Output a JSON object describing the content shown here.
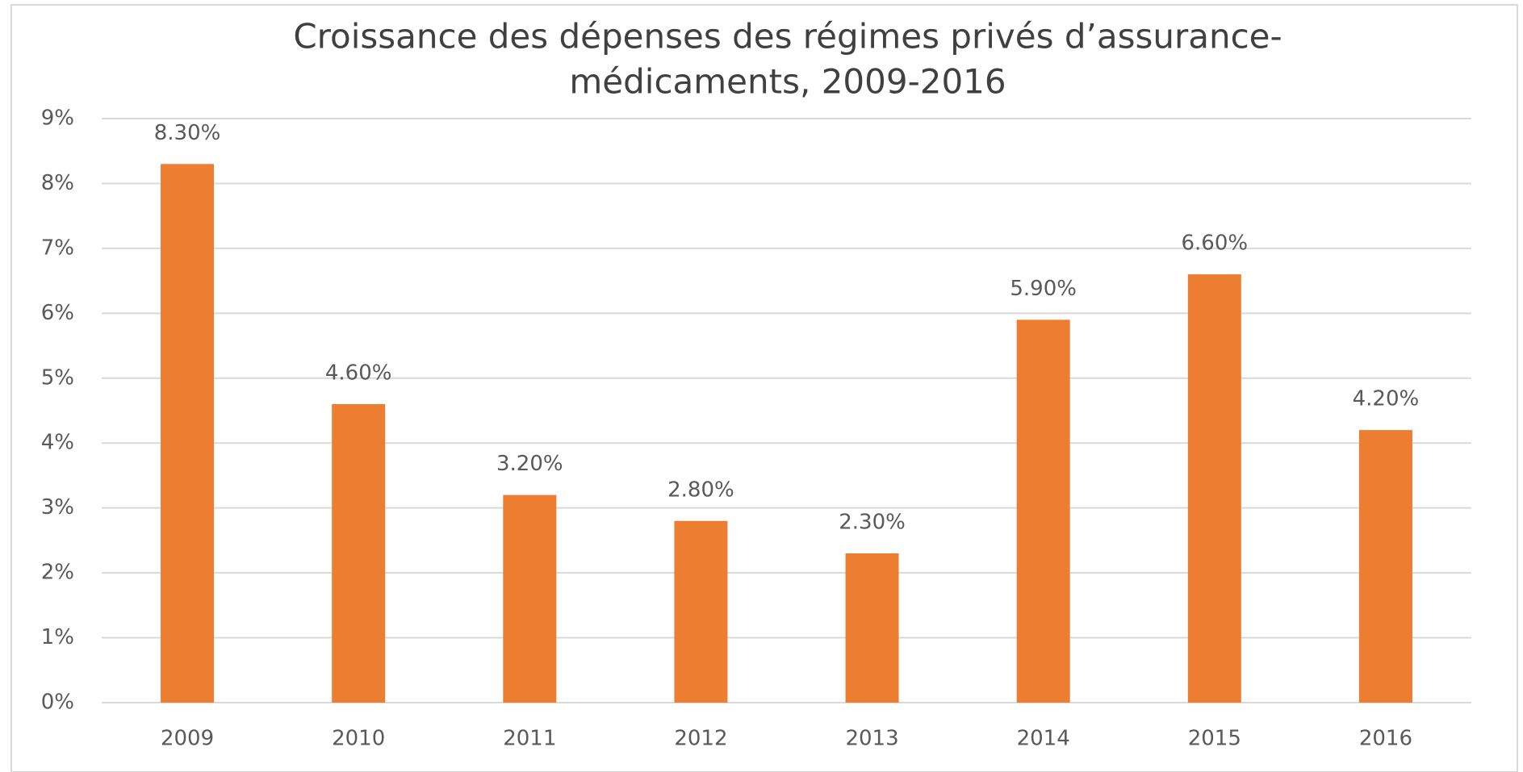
{
  "chart_data": {
    "type": "bar",
    "title": [
      "Croissance des dépenses des régimes privés d’assurance-",
      "médicaments, 2009-2016"
    ],
    "categories": [
      "2009",
      "2010",
      "2011",
      "2012",
      "2013",
      "2014",
      "2015",
      "2016"
    ],
    "values": [
      8.3,
      4.6,
      3.2,
      2.8,
      2.3,
      5.9,
      6.6,
      4.2
    ],
    "value_labels": [
      "8.30%",
      "4.60%",
      "3.20%",
      "2.80%",
      "2.30%",
      "5.90%",
      "6.60%",
      "4.20%"
    ],
    "color": "#ed7d31",
    "ylim": [
      0,
      9
    ],
    "yticks": [
      {
        "value": 0,
        "label": "0%"
      },
      {
        "value": 1,
        "label": "1%"
      },
      {
        "value": 2,
        "label": "2%"
      },
      {
        "value": 3,
        "label": "3%"
      },
      {
        "value": 4,
        "label": "4%"
      },
      {
        "value": 5,
        "label": "5%"
      },
      {
        "value": 6,
        "label": "6%"
      },
      {
        "value": 7,
        "label": "7%"
      },
      {
        "value": 8,
        "label": "8%"
      },
      {
        "value": 9,
        "label": "9%"
      }
    ],
    "grid": true
  }
}
